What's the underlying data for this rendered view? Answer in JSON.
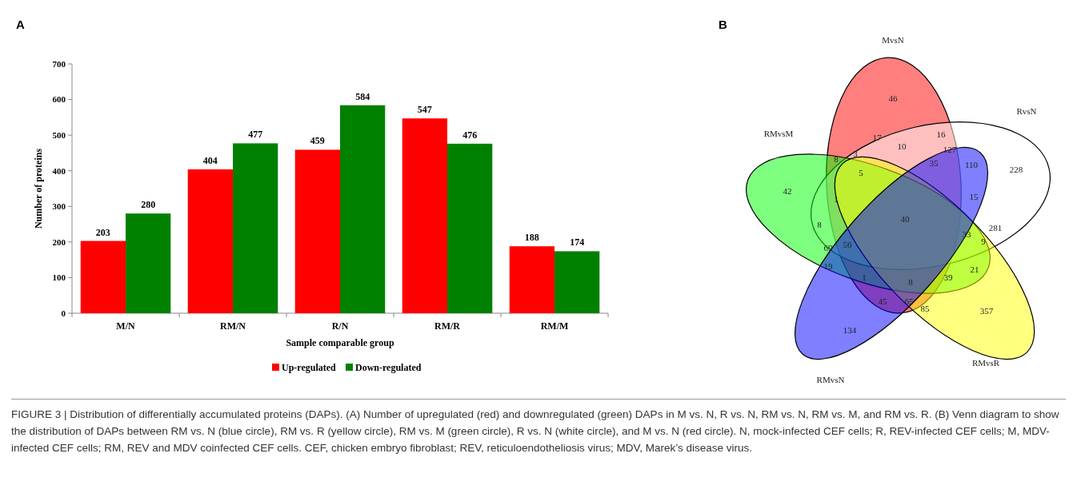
{
  "chart_data": [
    {
      "type": "bar",
      "title": "A",
      "xlabel": "Sample comparable group",
      "ylabel": "Number of proteins",
      "categories": [
        "M/N",
        "RM/N",
        "R/N",
        "RM/R",
        "RM/M"
      ],
      "series": [
        {
          "name": "Up-regulated",
          "color": "#ff0000",
          "values": [
            203,
            404,
            459,
            547,
            188
          ]
        },
        {
          "name": "Down-regulated",
          "color": "#008000",
          "values": [
            280,
            477,
            584,
            476,
            174
          ]
        }
      ],
      "ylim": [
        0,
        700
      ],
      "yticks": [
        0,
        100,
        200,
        300,
        400,
        500,
        600,
        700
      ],
      "data_labels": true,
      "legend": "bottom",
      "grid": false,
      "annotations": [
        "FIGURE 3 | Distribution of differentially accumulated proteins (DAPs). (A) Number of upregulated (red) and downregulated (green) DAPs in M vs. N, R vs. N, RM vs. N, RM vs. M, and RM vs. R. (B) Venn diagram to show the distribution of DAPs between RM vs. N (blue circle), RM vs. R (yellow circle), RM vs. M (green circle), R vs. N (white circle), and M vs. N (red circle). N, mock-infected CEF cells; R, REV-infected CEF cells; M, MDV-infected CEF cells; RM, REV and MDV coinfected CEF cells. CEF, chicken embryo fibroblast; REV, reticuloendotheliosis virus; MDV, Marek’s disease virus."
      ]
    },
    {
      "type": "other",
      "title": "B",
      "annotations": [
        "MvsN",
        "RvsN",
        "RMvsM",
        "RMvsR",
        "RMvsN",
        "46",
        "17",
        "16",
        "10",
        "127",
        "8",
        "3",
        "35",
        "110",
        "228",
        "5",
        "42",
        "1",
        "15",
        "40",
        "8",
        "281",
        "33",
        "9",
        "69",
        "56",
        "19",
        "21",
        "1",
        "8",
        "39",
        "45",
        "65",
        "85",
        "357",
        "134"
      ]
    }
  ]
}
